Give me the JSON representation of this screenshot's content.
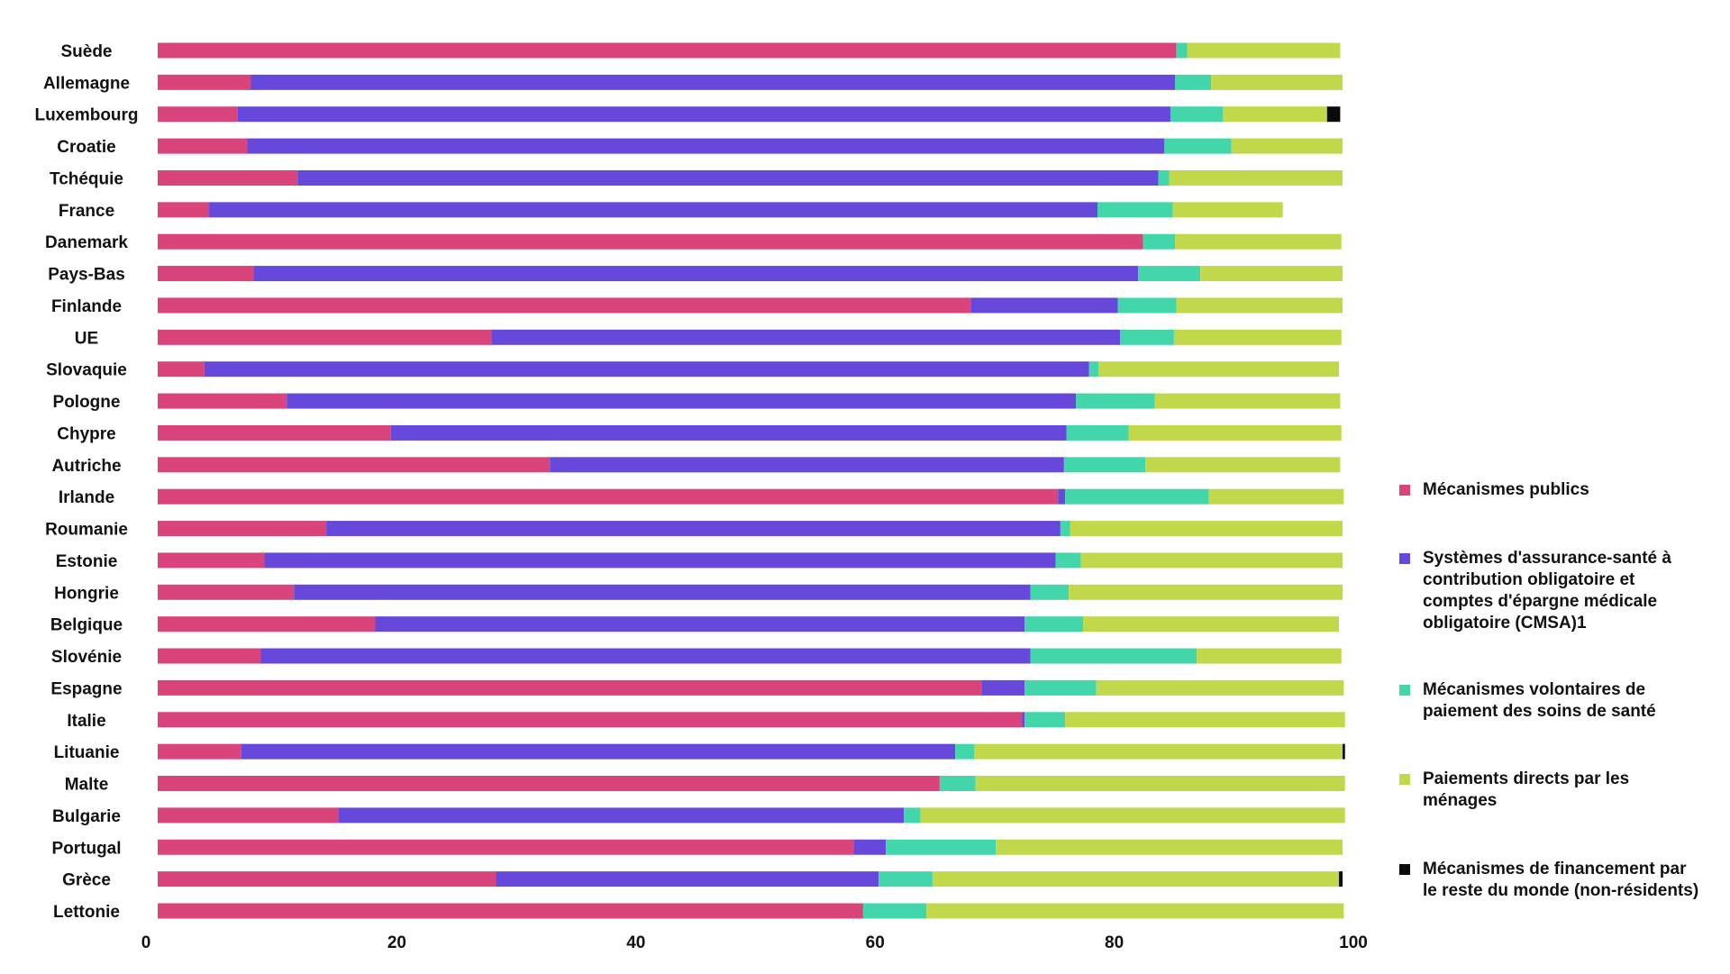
{
  "chart_data": {
    "type": "bar",
    "orientation": "horizontal",
    "stacked": true,
    "xlim": [
      0,
      100
    ],
    "x_ticks": [
      "0",
      "20",
      "40",
      "60",
      "80",
      "100"
    ],
    "grid": false,
    "legend_position": "right",
    "categories": [
      "Suède",
      "Allemagne",
      "Luxembourg",
      "Croatie",
      "Tchéquie",
      "France",
      "Danemark",
      "Pays-Bas",
      "Finlande",
      "UE",
      "Slovaquie",
      "Pologne",
      "Chypre",
      "Autriche",
      "Irlande",
      "Roumanie",
      "Estonie",
      "Hongrie",
      "Belgique",
      "Slovénie",
      "Espagne",
      "Italie",
      "Lituanie",
      "Malte",
      "Bulgarie",
      "Portugal",
      "Grèce",
      "Lettonie"
    ],
    "series": [
      {
        "name": "Mécanismes publics",
        "color": "#d9457a",
        "values": [
          85.2,
          7.8,
          6.7,
          7.5,
          11.7,
          4.3,
          82.4,
          8.0,
          68.0,
          27.9,
          3.9,
          10.8,
          19.5,
          32.8,
          75.3,
          14.1,
          8.9,
          11.4,
          18.2,
          8.6,
          68.9,
          72.3,
          7.0,
          65.4,
          15.1,
          58.2,
          28.3,
          59.0
        ]
      },
      {
        "name": "Systèmes d'assurance-santé à contribution obligatoire et comptes d'épargne médicale obligatoire (CMSA)1",
        "color": "#6648db",
        "values": [
          0,
          77.3,
          78.0,
          76.7,
          72.0,
          74.3,
          0,
          74.0,
          12.3,
          52.6,
          74.0,
          66.0,
          56.5,
          43.0,
          0.6,
          61.4,
          66.2,
          61.6,
          54.3,
          64.4,
          3.6,
          0.2,
          59.7,
          0,
          47.3,
          2.7,
          32.0,
          0
        ]
      },
      {
        "name": "Mécanismes volontaires de paiement des soins de santé",
        "color": "#44d6ab",
        "values": [
          0.9,
          3.0,
          4.4,
          5.6,
          0.9,
          6.3,
          2.7,
          5.2,
          4.9,
          4.5,
          0.8,
          6.6,
          5.2,
          6.8,
          12.0,
          0.8,
          2.1,
          3.2,
          4.9,
          13.9,
          6.0,
          3.4,
          1.6,
          3.0,
          1.4,
          9.2,
          4.5,
          5.3
        ]
      },
      {
        "name": "Paiements directs par les ménages",
        "color": "#c2d84b",
        "values": [
          12.8,
          11.0,
          8.7,
          9.3,
          14.5,
          9.2,
          13.9,
          11.9,
          13.9,
          14.0,
          20.1,
          15.5,
          17.8,
          16.3,
          11.3,
          22.8,
          21.9,
          22.9,
          21.4,
          12.1,
          20.7,
          23.4,
          30.8,
          30.9,
          35.5,
          29.0,
          34.0,
          34.9
        ]
      },
      {
        "name": "Mécanismes de financement par le reste du monde (non-résidents)",
        "color": "#0a0a0a",
        "values": [
          0,
          0,
          1.1,
          0,
          0,
          0,
          0,
          0,
          0,
          0,
          0,
          0,
          0,
          0,
          0,
          0,
          0,
          0,
          0,
          0,
          0,
          0,
          0.2,
          0,
          0,
          0,
          0.3,
          0
        ]
      }
    ]
  }
}
